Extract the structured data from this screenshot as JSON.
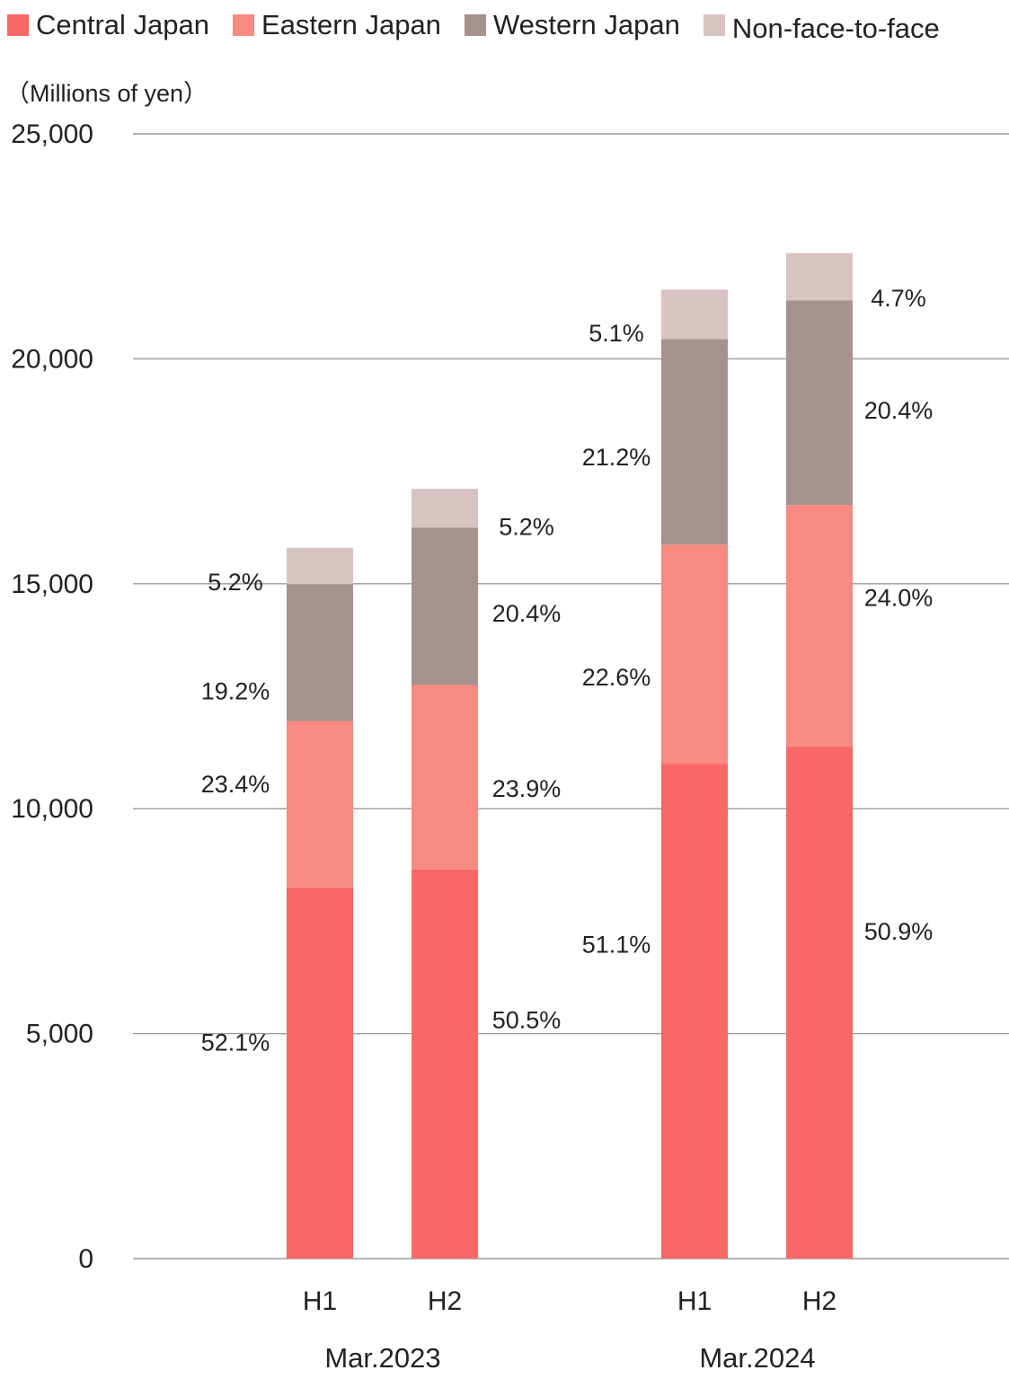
{
  "chart_data": {
    "type": "bar",
    "stacked": true,
    "ylabel": "（Millions of yen）",
    "ylim": [
      0,
      25000
    ],
    "yticks": [
      0,
      5000,
      10000,
      15000,
      20000,
      25000
    ],
    "ytick_labels": [
      "0",
      "5,000",
      "10,000",
      "15,000",
      "20,000",
      "25,000"
    ],
    "grid": true,
    "legend_position": "top",
    "categories": [
      "H1",
      "H2",
      "H1",
      "H2"
    ],
    "groups": [
      {
        "label": "Mar.2023",
        "categories": [
          0,
          1
        ]
      },
      {
        "label": "Mar.2024",
        "categories": [
          2,
          3
        ]
      }
    ],
    "series": [
      {
        "name": "Central Japan",
        "color": "#f76866",
        "values": [
          8250,
          8650,
          11000,
          11380
        ],
        "labels": [
          "52.1%",
          "50.5%",
          "51.1%",
          "50.9%"
        ]
      },
      {
        "name": "Eastern Japan",
        "color": "#f88a82",
        "values": [
          3700,
          4100,
          4870,
          5370
        ],
        "labels": [
          "23.4%",
          "23.9%",
          "22.6%",
          "24.0%"
        ]
      },
      {
        "name": "Western Japan",
        "color": "#a6918f",
        "values": [
          3040,
          3500,
          4570,
          4550
        ],
        "labels": [
          "19.2%",
          "20.4%",
          "21.2%",
          "20.4%"
        ]
      },
      {
        "name": "Non-face-to-face",
        "color": "#d8c2c2",
        "values": [
          810,
          860,
          1100,
          1050
        ],
        "labels": [
          "5.2%",
          "5.2%",
          "5.1%",
          "4.7%"
        ]
      }
    ]
  }
}
